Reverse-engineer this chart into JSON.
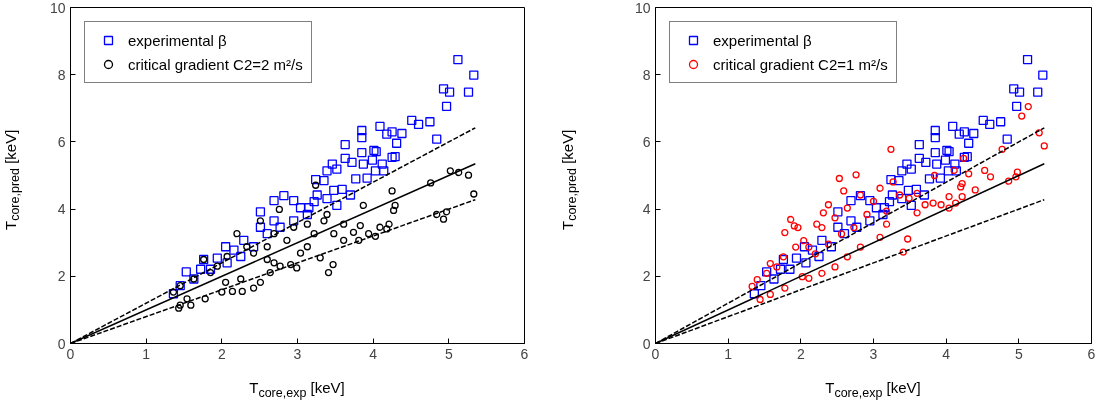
{
  "chart_data": [
    {
      "type": "scatter",
      "xlabel": "T$_{core,exp}$ [keV]",
      "ylabel": "T$_{core,pred}$ [keV]",
      "xlim": [
        0,
        6
      ],
      "ylim": [
        0,
        10
      ],
      "xticks": [
        0,
        1,
        2,
        3,
        4,
        5,
        6
      ],
      "yticks": [
        0,
        2,
        4,
        6,
        8,
        10
      ],
      "grid": false,
      "legend": "top left",
      "series": [
        {
          "name": "experimental β",
          "marker": "square",
          "color": "#0000ff",
          "x": [
            5.12,
            5.33,
            4.93,
            5.01,
            5.26,
            4.97,
            4.51,
            4.6,
            4.75,
            4.84,
            4.09,
            3.85,
            3.85,
            4.18,
            4.25,
            4.38,
            4.31,
            3.63,
            3.85,
            4.01,
            4.04,
            4.25,
            4.29,
            3.63,
            3.72,
            3.87,
            3.99,
            4.12,
            4.03,
            4.14,
            3.77,
            3.92,
            3.46,
            3.52,
            3.39,
            3.24,
            3.35,
            3.59,
            3.48,
            3.7,
            3.52,
            3.39,
            3.26,
            2.82,
            2.69,
            2.51,
            2.95,
            3.04,
            3.15,
            1.36,
            1.53,
            1.72,
            1.94,
            2.05,
            2.29,
            2.69,
            1.45,
            1.63,
            1.85,
            2.07,
            2.25,
            2.42,
            2.6,
            2.77,
            2.95,
            3.13,
            3.22,
            2.16,
            2.51,
            1.76
          ],
          "values": [
            8.45,
            7.99,
            7.58,
            7.48,
            7.48,
            7.06,
            6.64,
            6.52,
            6.6,
            6.08,
            6.46,
            6.34,
            6.13,
            6.23,
            6.3,
            6.25,
            5.96,
            5.92,
            5.68,
            5.75,
            5.71,
            5.54,
            5.56,
            5.51,
            5.39,
            5.34,
            5.46,
            5.34,
            5.14,
            5.14,
            4.9,
            4.92,
            5.34,
            5.19,
            5.14,
            4.88,
            4.85,
            4.59,
            4.56,
            4.42,
            4.11,
            4.31,
            4.42,
            4.4,
            4.25,
            3.92,
            4.25,
            4.04,
            4.04,
            1.48,
            2.13,
            2.21,
            2.54,
            2.88,
            3.07,
            3.65,
            1.72,
            1.92,
            2.21,
            2.4,
            2.59,
            2.88,
            3.27,
            3.46,
            3.65,
            3.84,
            4.22,
            2.78,
            3.46,
            2.5
          ]
        },
        {
          "name": "critical gradient C2=2 m²/s",
          "marker": "circle",
          "color": "#000000",
          "x": [
            5.02,
            5.13,
            5.26,
            4.76,
            5.33,
            4.97,
            4.84,
            4.93,
            4.25,
            4.29,
            4.27,
            3.87,
            4.21,
            4.18,
            4.09,
            4.03,
            3.94,
            3.83,
            3.74,
            3.81,
            3.61,
            3.61,
            3.48,
            3.41,
            3.47,
            3.3,
            3.24,
            3.22,
            3.13,
            3.04,
            2.99,
            2.91,
            2.77,
            2.69,
            2.6,
            2.64,
            2.51,
            2.42,
            2.27,
            2.14,
            2.0,
            2.05,
            2.25,
            1.78,
            1.59,
            1.45,
            1.43,
            1.54,
            2.76,
            2.51,
            2.2,
            2.33,
            2.07,
            1.76,
            1.85,
            1.63,
            1.45,
            1.36,
            2.95,
            2.86,
            2.6,
            2.42,
            1.94,
            3.13,
            3.35,
            3.39,
            2.69
          ],
          "values": [
            5.14,
            5.09,
            5.01,
            4.78,
            4.45,
            3.92,
            3.84,
            3.7,
            4.54,
            4.11,
            3.96,
            4.11,
            3.55,
            3.41,
            3.46,
            3.19,
            3.27,
            3.51,
            3.31,
            3.07,
            3.55,
            3.07,
            3.27,
            2.11,
            2.35,
            2.55,
            4.71,
            3.27,
            2.88,
            2.69,
            2.25,
            2.35,
            2.3,
            2.4,
            2.5,
            2.11,
            1.82,
            1.65,
            1.55,
            1.55,
            1.53,
            1.82,
            1.92,
            1.33,
            1.14,
            1.14,
            1.05,
            1.33,
            3.99,
            3.65,
            3.27,
            2.88,
            2.59,
            2.5,
            2.11,
            1.92,
            1.72,
            1.53,
            3.46,
            3.07,
            2.88,
            2.69,
            2.3,
            3.55,
            3.65,
            3.84,
            3.27
          ]
        },
        {
          "type": "line",
          "line_style": "solid",
          "color": "#000000",
          "x": [
            0,
            5.35
          ],
          "values": [
            0,
            5.35
          ]
        },
        {
          "type": "line",
          "line_style": "dashed",
          "color": "#000000",
          "x": [
            0,
            5.35
          ],
          "values": [
            0,
            6.42
          ]
        },
        {
          "type": "line",
          "line_style": "dashed",
          "color": "#000000",
          "x": [
            0,
            5.35
          ],
          "values": [
            0,
            4.28
          ]
        }
      ]
    },
    {
      "type": "scatter",
      "xlabel": "T$_{core,exp}$ [keV]",
      "ylabel": "T$_{core,pred}$ [keV]",
      "xlim": [
        0,
        6
      ],
      "ylim": [
        0,
        10
      ],
      "xticks": [
        0,
        1,
        2,
        3,
        4,
        5,
        6
      ],
      "yticks": [
        0,
        2,
        4,
        6,
        8,
        10
      ],
      "grid": false,
      "legend": "top left",
      "series": [
        {
          "name": "experimental β",
          "type": "scatter",
          "marker": "square",
          "color": "#0000ff",
          "x": [
            5.12,
            5.33,
            4.93,
            5.01,
            5.26,
            4.97,
            4.51,
            4.6,
            4.75,
            4.84,
            4.09,
            3.85,
            3.85,
            4.18,
            4.25,
            4.38,
            4.31,
            3.63,
            3.85,
            4.01,
            4.04,
            4.25,
            4.29,
            3.63,
            3.72,
            3.87,
            3.99,
            4.12,
            4.03,
            4.14,
            3.77,
            3.92,
            3.46,
            3.52,
            3.39,
            3.24,
            3.35,
            3.59,
            3.48,
            3.7,
            3.52,
            3.39,
            3.26,
            2.82,
            2.69,
            2.51,
            2.95,
            3.04,
            3.15,
            1.36,
            1.53,
            1.72,
            1.94,
            2.05,
            2.29,
            2.69,
            1.45,
            1.63,
            1.85,
            2.07,
            2.25,
            2.42,
            2.6,
            2.77,
            2.95,
            3.13,
            3.22,
            2.16,
            2.51,
            1.76
          ],
          "values": [
            8.45,
            7.99,
            7.58,
            7.48,
            7.48,
            7.06,
            6.64,
            6.52,
            6.6,
            6.08,
            6.46,
            6.34,
            6.13,
            6.23,
            6.3,
            6.25,
            5.96,
            5.92,
            5.68,
            5.75,
            5.71,
            5.54,
            5.56,
            5.51,
            5.39,
            5.34,
            5.46,
            5.34,
            5.14,
            5.14,
            4.9,
            4.92,
            5.34,
            5.19,
            5.14,
            4.88,
            4.85,
            4.59,
            4.56,
            4.42,
            4.11,
            4.31,
            4.42,
            4.4,
            4.25,
            3.92,
            4.25,
            4.04,
            4.04,
            1.48,
            2.13,
            2.21,
            2.54,
            2.88,
            3.07,
            3.65,
            1.72,
            1.92,
            2.21,
            2.4,
            2.59,
            2.88,
            3.27,
            3.46,
            3.65,
            3.84,
            4.22,
            2.78,
            3.46,
            2.5
          ]
        },
        {
          "name": "critical gradient C2=1 m²/s",
          "marker": "circle",
          "color": "#ff0000",
          "x": [
            5.13,
            5.04,
            5.28,
            5.35,
            4.77,
            4.98,
            4.96,
            4.86,
            4.53,
            4.61,
            4.24,
            4.31,
            4.11,
            4.22,
            4.2,
            4.4,
            4.22,
            4.04,
            4.04,
            4.13,
            3.93,
            3.82,
            3.71,
            3.84,
            3.6,
            3.6,
            3.47,
            3.41,
            3.24,
            2.76,
            2.53,
            2.59,
            2.38,
            2.31,
            1.86,
            1.91,
            1.78,
            1.96,
            2.22,
            2.04,
            1.93,
            1.76,
            1.58,
            1.4,
            1.33,
            1.44,
            1.78,
            1.58,
            2.02,
            2.11,
            2.29,
            2.47,
            2.64,
            2.82,
            3.09,
            3.18,
            3.0,
            2.82,
            2.64,
            2.47,
            2.29,
            2.11,
            2.91,
            2.73,
            2.56,
            2.38,
            2.2,
            3.09,
            3.27,
            3.36,
            3.49,
            3.18,
            1.67,
            1.53
          ],
          "values": [
            7.05,
            6.77,
            6.27,
            5.88,
            5.78,
            5.1,
            4.96,
            4.83,
            5.15,
            4.96,
            5.51,
            5.05,
            5.15,
            4.76,
            4.66,
            4.57,
            4.37,
            4.37,
            4.03,
            4.18,
            4.13,
            4.18,
            4.13,
            5.0,
            4.47,
            3.89,
            3.11,
            2.72,
            5.78,
            5.02,
            4.91,
            4.54,
            4.13,
            3.89,
            3.69,
            3.5,
            3.3,
            3.45,
            3.55,
            3.06,
            2.87,
            2.58,
            2.38,
            1.9,
            1.7,
            1.31,
            1.65,
            1.46,
            1.99,
            1.94,
            2.09,
            2.28,
            2.58,
            2.87,
            3.16,
            3.94,
            4.23,
            4.42,
            4.03,
            3.74,
            3.45,
            2.87,
            3.84,
            3.45,
            3.26,
            2.96,
            2.67,
            4.62,
            4.81,
            4.42,
            4.32,
            3.55,
            2.28,
            2.09
          ]
        },
        {
          "type": "line",
          "line_style": "solid",
          "color": "#000000",
          "x": [
            0,
            5.35
          ],
          "values": [
            0,
            5.35
          ]
        },
        {
          "type": "line",
          "line_style": "dashed",
          "color": "#000000",
          "x": [
            0,
            5.35
          ],
          "values": [
            0,
            6.42
          ]
        },
        {
          "type": "line",
          "line_style": "dashed",
          "color": "#000000",
          "x": [
            0,
            5.35
          ],
          "values": [
            0,
            4.28
          ]
        }
      ]
    }
  ]
}
